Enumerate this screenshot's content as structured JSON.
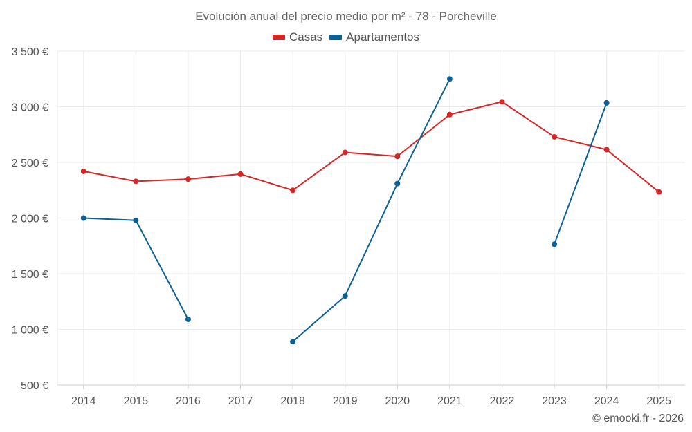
{
  "chart_data": {
    "type": "line",
    "title": "Evolución anual del precio medio por m² - 78 - Porcheville",
    "categories": [
      "2014",
      "2015",
      "2016",
      "2017",
      "2018",
      "2019",
      "2020",
      "2021",
      "2022",
      "2023",
      "2024",
      "2025"
    ],
    "ylim": [
      500,
      3500
    ],
    "yticks": [
      500,
      1000,
      1500,
      2000,
      2500,
      3000,
      3500
    ],
    "ytick_labels": [
      "500 €",
      "1 000 €",
      "1 500 €",
      "2 000 €",
      "2 500 €",
      "3 000 €",
      "3 500 €"
    ],
    "grid": true,
    "legend_position": "top-center",
    "series": [
      {
        "name": "Casas",
        "color": "#d62728",
        "values": [
          2420,
          2330,
          2350,
          2395,
          2250,
          2590,
          2555,
          2930,
          3045,
          2730,
          2615,
          2235
        ]
      },
      {
        "name": "Apartamentos",
        "color": "#0b6196",
        "values": [
          2000,
          1980,
          1090,
          null,
          890,
          1300,
          2310,
          3250,
          null,
          1765,
          3035,
          null
        ]
      }
    ]
  },
  "copyright": "© emooki.fr - 2026"
}
